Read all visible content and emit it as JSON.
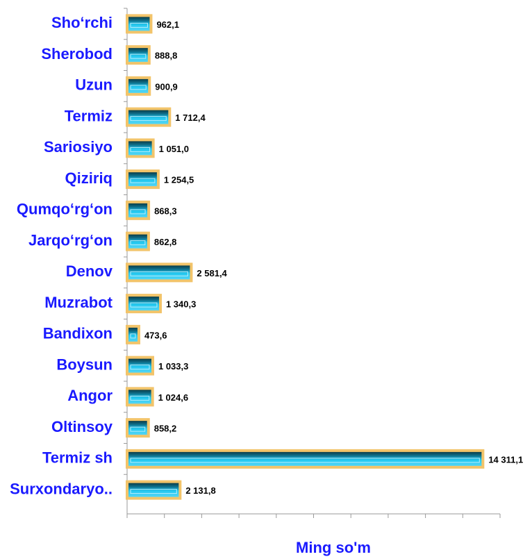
{
  "chart_data": {
    "type": "bar",
    "orientation": "horizontal",
    "categories": [
      "Sho‘rchi",
      "Sherobod",
      "Uzun",
      "Termiz",
      "Sariosiyo",
      "Qiziriq",
      "Qumqo‘rg‘on",
      "Jarqo‘rg‘on",
      "Denov",
      "Muzrabot",
      "Bandixon",
      "Boysun",
      "Angor",
      "Oltinsoy",
      "Termiz sh",
      "Surxondaryo.."
    ],
    "values": [
      962.1,
      888.8,
      900.9,
      1712.4,
      1051.0,
      1254.5,
      868.3,
      862.8,
      2581.4,
      1340.3,
      473.6,
      1033.3,
      1024.6,
      858.2,
      14311.1,
      2131.8
    ],
    "value_labels": [
      "962,1",
      "888,8",
      "900,9",
      "1 712,4",
      "1 051,0",
      "1 254,5",
      "868,3",
      "862,8",
      "2 581,4",
      "1 340,3",
      "473,6",
      "1 033,3",
      "1 024,6",
      "858,2",
      "14 311,1",
      "2 131,8"
    ],
    "color": "#19b6e6",
    "xlabel": "Ming so'm",
    "xlim": [
      0,
      15000
    ],
    "xticks": [
      0,
      1500,
      3000,
      4500,
      6000,
      7500,
      9000,
      10500,
      12000,
      13500,
      15000
    ]
  }
}
